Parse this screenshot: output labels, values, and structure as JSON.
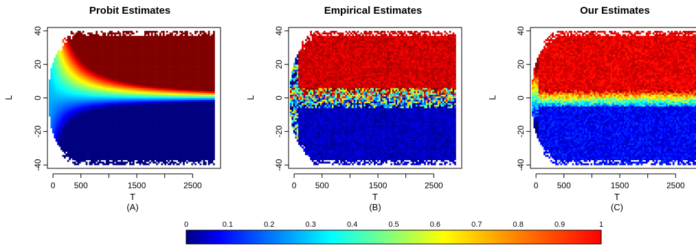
{
  "chart_data": [
    {
      "type": "heatmap",
      "title": "Probit Estimates",
      "subtitle": "(A)",
      "xlabel": "T",
      "ylabel": "L",
      "xlim": [
        -100,
        3000
      ],
      "ylim": [
        -42,
        42
      ],
      "xticks": [
        0,
        500,
        1500,
        2500
      ],
      "xtick_labels": [
        "0",
        "500",
        "1500",
        "2500"
      ],
      "yticks": [
        -40,
        -20,
        0,
        20,
        40
      ],
      "ytick_labels": [
        "-40",
        "-20",
        "0",
        "20",
        "40"
      ],
      "model": "probit",
      "pattern": "smooth probability surface rising with L and T; near 0.3 at L=0, approaching 1 at large positive L and 0 at large negative L",
      "support": "wedge-shaped region: half-width about 11 at T=0, widening to about 40 by T=1500 and beyond"
    },
    {
      "type": "heatmap",
      "title": "Empirical Estimates",
      "subtitle": "(B)",
      "xlabel": "T",
      "ylabel": "L",
      "xlim": [
        -100,
        3000
      ],
      "ylim": [
        -42,
        42
      ],
      "xticks": [
        0,
        500,
        1500,
        2500
      ],
      "xtick_labels": [
        "0",
        "500",
        "1500",
        "2500"
      ],
      "yticks": [
        -40,
        -20,
        0,
        20,
        40
      ],
      "ytick_labels": [
        "-40",
        "-20",
        "0",
        "20",
        "40"
      ],
      "model": "empirical",
      "pattern": "noisy step: values near 1 for L>0 and near 0 for L<0, with a mixed band near L=0",
      "support": "wedge-shaped region: half-width about 11 at T=0, widening to about 40"
    },
    {
      "type": "heatmap",
      "title": "Our Estimates",
      "subtitle": "(C)",
      "xlabel": "T",
      "ylabel": "L",
      "xlim": [
        -100,
        3000
      ],
      "ylim": [
        -42,
        42
      ],
      "xticks": [
        0,
        500,
        1500,
        2500
      ],
      "xtick_labels": [
        "0",
        "500",
        "1500",
        "2500"
      ],
      "yticks": [
        -40,
        -20,
        0,
        20,
        40
      ],
      "ytick_labels": [
        "-40",
        "-20",
        "0",
        "20",
        "40"
      ],
      "model": "smoothed",
      "pattern": "smoothed step: near 1 for L>5, near 0 for L<-5, yellow/orange transition around L=0",
      "support": "wedge-shaped region: half-width about 11 at T=0, widening to about 40"
    }
  ],
  "colorbar": {
    "ticks": [
      0,
      0.1,
      0.2,
      0.3,
      0.4,
      0.5,
      0.6,
      0.7,
      0.8,
      0.9,
      1
    ],
    "tick_labels": [
      "0",
      "0.1",
      "0.2",
      "0.3",
      "0.4",
      "0.5",
      "0.6",
      "0.7",
      "0.8",
      "0.9",
      "1"
    ],
    "colormap": "jet",
    "stops": [
      "#0000ff",
      "#00ffff",
      "#ffff00",
      "#ff8000",
      "#ff0000"
    ]
  }
}
